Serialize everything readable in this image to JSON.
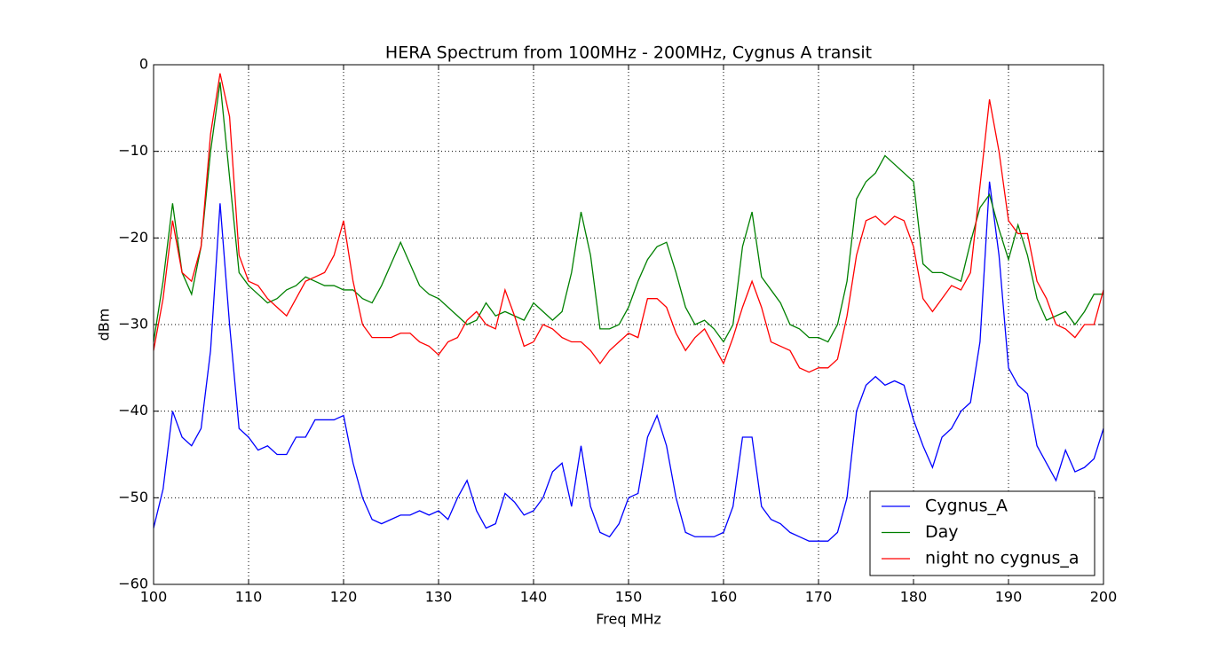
{
  "chart_data": {
    "type": "line",
    "title": "HERA Spectrum from 100MHz - 200MHz, Cygnus A transit",
    "x_label": "Freq MHz",
    "y_label": "dBm",
    "x": [
      100,
      101,
      102,
      103,
      104,
      105,
      106,
      107,
      108,
      109,
      110,
      111,
      112,
      113,
      114,
      115,
      116,
      117,
      118,
      119,
      120,
      121,
      122,
      123,
      124,
      125,
      126,
      127,
      128,
      129,
      130,
      131,
      132,
      133,
      134,
      135,
      136,
      137,
      138,
      139,
      140,
      141,
      142,
      143,
      144,
      145,
      146,
      147,
      148,
      149,
      150,
      151,
      152,
      153,
      154,
      155,
      156,
      157,
      158,
      159,
      160,
      161,
      162,
      163,
      164,
      165,
      166,
      167,
      168,
      169,
      170,
      171,
      172,
      173,
      174,
      175,
      176,
      177,
      178,
      179,
      180,
      181,
      182,
      183,
      184,
      185,
      186,
      187,
      188,
      189,
      190,
      191,
      192,
      193,
      194,
      195,
      196,
      197,
      198,
      199,
      200
    ],
    "series": [
      {
        "name": "Cygnus_A",
        "color": "#0000ff",
        "values": [
          -53.5,
          -49,
          -40,
          -43,
          -44,
          -42,
          -33,
          -16,
          -30,
          -42,
          -43,
          -44.5,
          -44,
          -45,
          -45,
          -43,
          -43,
          -41,
          -41,
          -41,
          -40.5,
          -46,
          -50,
          -52.5,
          -53,
          -52.5,
          -52,
          -52,
          -51.5,
          -52,
          -51.5,
          -52.5,
          -50,
          -48,
          -51.5,
          -53.5,
          -53,
          -49.5,
          -50.5,
          -52,
          -51.5,
          -50,
          -47,
          -46,
          -51,
          -44,
          -51,
          -54,
          -54.5,
          -53,
          -50,
          -49.5,
          -43,
          -40.5,
          -44,
          -50,
          -54,
          -54.5,
          -54.5,
          -54.5,
          -54,
          -51,
          -43,
          -43,
          -51,
          -52.5,
          -53,
          -54,
          -54.5,
          -55,
          -55,
          -55,
          -54,
          -50,
          -40,
          -37,
          -36,
          -37,
          -36.5,
          -37,
          -41,
          -44,
          -46.5,
          -43,
          -42,
          -40,
          -39,
          -32,
          -13.5,
          -22,
          -35,
          -37,
          -38,
          -44,
          -46,
          -48,
          -44.5,
          -47,
          -46.5,
          -45.5,
          -42
        ]
      },
      {
        "name": "Day",
        "color": "#008000",
        "values": [
          -32,
          -25,
          -16,
          -24,
          -26.5,
          -21,
          -10,
          -2,
          -13,
          -24,
          -25.5,
          -26.5,
          -27.5,
          -27,
          -26,
          -25.5,
          -24.5,
          -25,
          -25.5,
          -25.5,
          -26,
          -26,
          -27,
          -27.5,
          -25.5,
          -23,
          -20.5,
          -23,
          -25.5,
          -26.5,
          -27,
          -28,
          -29,
          -30,
          -29.5,
          -27.5,
          -29,
          -28.5,
          -29,
          -29.5,
          -27.5,
          -28.5,
          -29.5,
          -28.5,
          -24,
          -17,
          -22,
          -30.5,
          -30.5,
          -30,
          -28,
          -25,
          -22.5,
          -21,
          -20.5,
          -24,
          -28,
          -30,
          -29.5,
          -30.5,
          -32,
          -30,
          -21,
          -17,
          -24.5,
          -26,
          -27.5,
          -30,
          -30.5,
          -31.5,
          -31.5,
          -32,
          -30,
          -25,
          -15.5,
          -13.5,
          -12.5,
          -10.5,
          -11.5,
          -12.5,
          -13.5,
          -23,
          -24,
          -24,
          -24.5,
          -25,
          -20.5,
          -16.5,
          -15,
          -19,
          -22.5,
          -18.5,
          -22,
          -27,
          -29.5,
          -29,
          -28.5,
          -30,
          -28.5,
          -26.5,
          -26.5
        ]
      },
      {
        "name": "night no cygnus_a",
        "color": "#ff0000",
        "values": [
          -33,
          -27,
          -18,
          -24,
          -25,
          -21,
          -8,
          -1,
          -6,
          -22,
          -25,
          -25.5,
          -27,
          -28,
          -29,
          -27,
          -25,
          -24.5,
          -24,
          -22,
          -18,
          -25,
          -30,
          -31.5,
          -31.5,
          -31.5,
          -31,
          -31,
          -32,
          -32.5,
          -33.5,
          -32,
          -31.5,
          -29.5,
          -28.5,
          -30,
          -30.5,
          -26,
          -29,
          -32.5,
          -32,
          -30,
          -30.5,
          -31.5,
          -32,
          -32,
          -33,
          -34.5,
          -33,
          -32,
          -31,
          -31.5,
          -27,
          -27,
          -28,
          -31,
          -33,
          -31.5,
          -30.5,
          -32.5,
          -34.5,
          -31.5,
          -28,
          -25,
          -28,
          -32,
          -32.5,
          -33,
          -35,
          -35.5,
          -35,
          -35,
          -34,
          -29,
          -22,
          -18,
          -17.5,
          -18.5,
          -17.5,
          -18,
          -21,
          -27,
          -28.5,
          -27,
          -25.5,
          -26,
          -24,
          -14,
          -4,
          -10,
          -18,
          -19.5,
          -19.5,
          -25,
          -27,
          -30,
          -30.5,
          -31.5,
          -30,
          -30,
          -26
        ]
      }
    ],
    "xlim": [
      100,
      200
    ],
    "ylim": [
      -60,
      0
    ],
    "xticks": [
      100,
      110,
      120,
      130,
      140,
      150,
      160,
      170,
      180,
      190,
      200
    ],
    "yticks": [
      {
        "value": -60,
        "label": "−60"
      },
      {
        "value": -50,
        "label": "−50"
      },
      {
        "value": -40,
        "label": "−40"
      },
      {
        "value": -30,
        "label": "−30"
      },
      {
        "value": -20,
        "label": "−20"
      },
      {
        "value": -10,
        "label": "−10"
      },
      0
    ],
    "grid": true,
    "legend": "lower right"
  }
}
